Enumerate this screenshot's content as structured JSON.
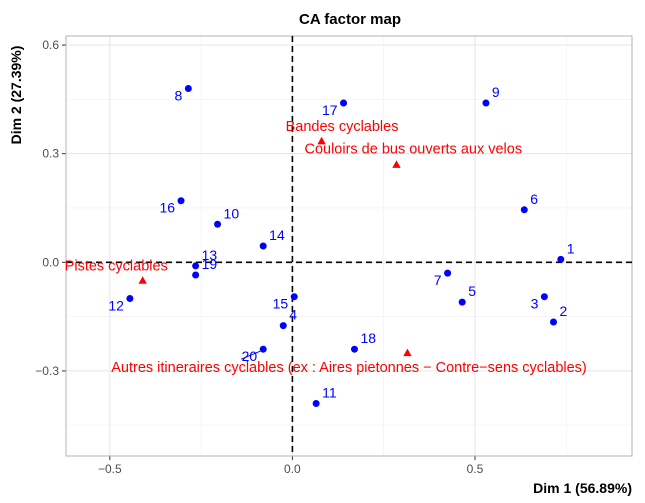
{
  "chart_data": {
    "type": "scatter",
    "title": "CA factor map",
    "xlabel": "Dim 1 (56.89%)",
    "ylabel": "Dim 2 (27.39%)",
    "xlim": [
      -0.62,
      0.93
    ],
    "ylim": [
      -0.535,
      0.625
    ],
    "xticks": [
      -0.5,
      0.0,
      0.5
    ],
    "yticks": [
      -0.3,
      0.0,
      0.3,
      0.6
    ],
    "xtick_labels": [
      "−0.5",
      "0.0",
      "0.5"
    ],
    "ytick_labels": [
      "−0.3",
      "0.0",
      "0.3",
      "0.6"
    ],
    "grid": true,
    "reference_lines": {
      "x": 0,
      "y": 0,
      "style": "dashed"
    },
    "colors": {
      "rows": "#0000ff",
      "columns": "#ff0000",
      "grid": "#e5e5e5",
      "panel_border": "#b3b3b3"
    },
    "rows": [
      {
        "label": "1",
        "x": 0.735,
        "y": 0.008,
        "anchor": "right"
      },
      {
        "label": "2",
        "x": 0.715,
        "y": -0.165,
        "anchor": "right"
      },
      {
        "label": "3",
        "x": 0.69,
        "y": -0.095,
        "anchor": "left"
      },
      {
        "label": "4",
        "x": -0.025,
        "y": -0.175,
        "anchor": "right"
      },
      {
        "label": "5",
        "x": 0.465,
        "y": -0.11,
        "anchor": "right"
      },
      {
        "label": "6",
        "x": 0.635,
        "y": 0.145,
        "anchor": "right"
      },
      {
        "label": "7",
        "x": 0.425,
        "y": -0.03,
        "anchor": "left"
      },
      {
        "label": "8",
        "x": -0.285,
        "y": 0.48,
        "anchor": "left"
      },
      {
        "label": "9",
        "x": 0.53,
        "y": 0.44,
        "anchor": "right"
      },
      {
        "label": "10",
        "x": -0.205,
        "y": 0.105,
        "anchor": "right"
      },
      {
        "label": "11",
        "x": 0.065,
        "y": -0.39,
        "anchor": "right"
      },
      {
        "label": "12",
        "x": -0.445,
        "y": -0.1,
        "anchor": "left"
      },
      {
        "label": "13",
        "x": -0.265,
        "y": -0.01,
        "anchor": "right"
      },
      {
        "label": "14",
        "x": -0.08,
        "y": 0.045,
        "anchor": "right"
      },
      {
        "label": "15",
        "x": 0.005,
        "y": -0.095,
        "anchor": "left"
      },
      {
        "label": "16",
        "x": -0.305,
        "y": 0.17,
        "anchor": "left"
      },
      {
        "label": "17",
        "x": 0.14,
        "y": 0.44,
        "anchor": "left"
      },
      {
        "label": "18",
        "x": 0.17,
        "y": -0.24,
        "anchor": "right"
      },
      {
        "label": "19",
        "x": -0.265,
        "y": -0.035,
        "anchor": "right"
      },
      {
        "label": "20",
        "x": -0.08,
        "y": -0.24,
        "anchor": "left"
      }
    ],
    "columns": [
      {
        "label": "Bandes cyclables",
        "x": 0.08,
        "y": 0.335
      },
      {
        "label": "Couloirs de bus ouverts aux velos",
        "x": 0.285,
        "y": 0.27
      },
      {
        "label": "Pistes cyclables",
        "x": -0.41,
        "y": -0.05
      },
      {
        "label": "Autres itineraires cyclables (ex : Aires pietonnes − Contre−sens cyclables)",
        "x": 0.315,
        "y": -0.25
      }
    ]
  }
}
